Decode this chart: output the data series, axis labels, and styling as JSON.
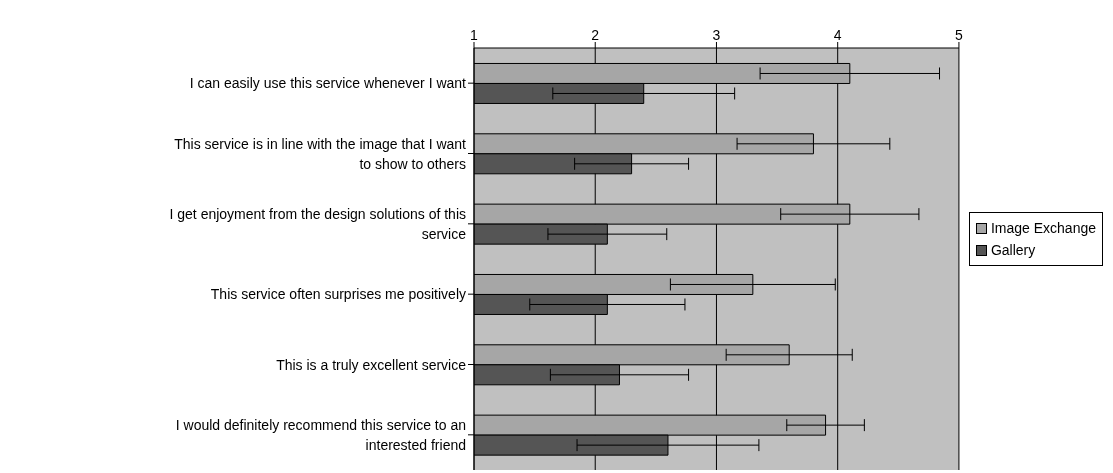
{
  "chart_data": {
    "type": "bar",
    "orientation": "horizontal",
    "categories": [
      "I can easily use this service whenever I want",
      "This service is in line with the image that I want to show to others",
      "I get enjoyment from the design solutions of this service",
      "This service often surprises me positively",
      "This is a truly excellent service",
      "I would definitely recommend this service to an interested friend"
    ],
    "series": [
      {
        "name": "Image Exchange",
        "color": "#a6a6a6",
        "values": [
          4.1,
          3.8,
          4.1,
          3.3,
          3.6,
          3.9
        ],
        "errors": [
          0.74,
          0.63,
          0.57,
          0.68,
          0.52,
          0.32
        ]
      },
      {
        "name": "Gallery",
        "color": "#555555",
        "values": [
          2.4,
          2.3,
          2.1,
          2.1,
          2.2,
          2.6
        ],
        "errors": [
          0.75,
          0.47,
          0.49,
          0.64,
          0.57,
          0.75
        ]
      }
    ],
    "xlim": [
      1,
      5
    ],
    "xticks": [
      1,
      2,
      3,
      4,
      5
    ],
    "grid": "x",
    "legend": "right"
  }
}
